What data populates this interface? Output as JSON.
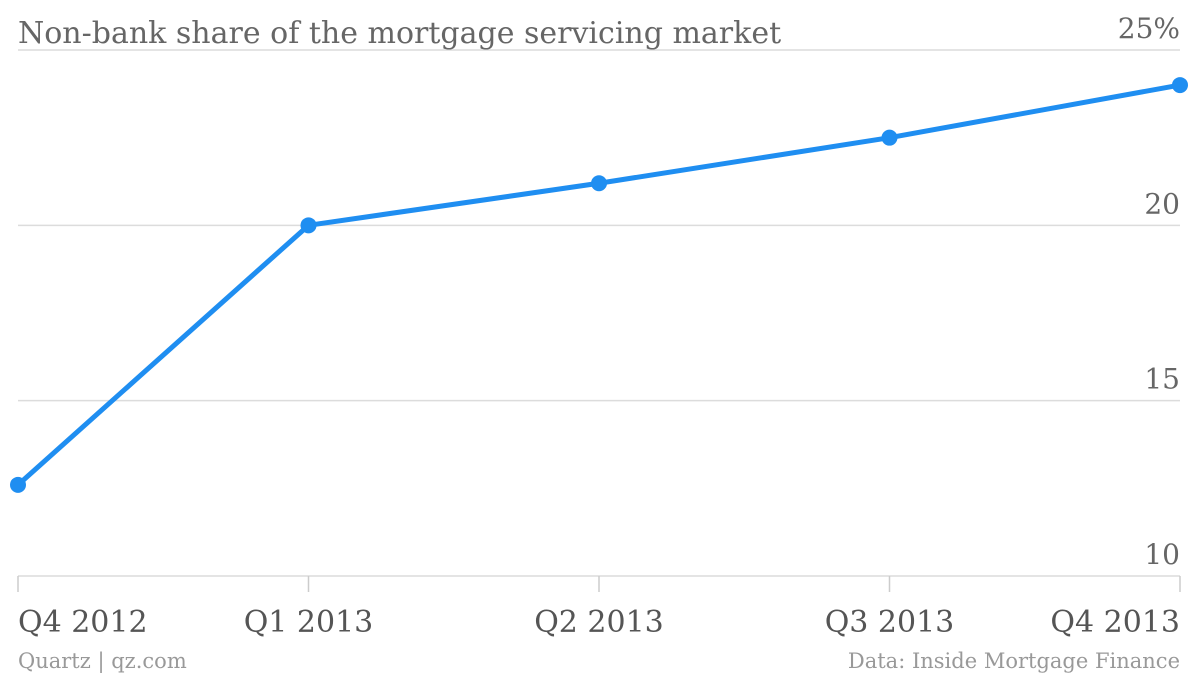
{
  "chart_data": {
    "type": "line",
    "title": "Non-bank share of the mortgage servicing market",
    "categories": [
      "Q4 2012",
      "Q1 2013",
      "Q2 2013",
      "Q3 2013",
      "Q4 2013"
    ],
    "series": [
      {
        "values": [
          12.6,
          20.0,
          21.2,
          22.5,
          24.0
        ]
      }
    ],
    "y_ticks": [
      10,
      15,
      20,
      25
    ],
    "y_tick_labels": [
      "10",
      "15",
      "20",
      "25%"
    ],
    "ylim": [
      10,
      25
    ],
    "y_axis_side": "right",
    "grid": true,
    "legend": "none",
    "colors": {
      "series": "#1f8ef1"
    }
  },
  "footer": {
    "left": "Quartz | qz.com",
    "right": "Data: Inside Mortgage Finance"
  }
}
